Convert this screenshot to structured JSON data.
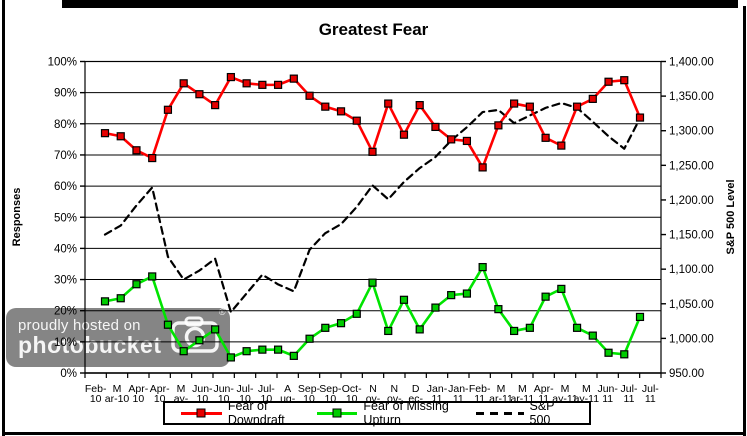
{
  "watermark": {
    "line1": "proudly hosted on",
    "line2": "photobucket",
    "registered": "®"
  },
  "chart_data": {
    "type": "line",
    "title": "Greatest Fear",
    "note": "Survey series sampled ~biweekly (35 points) across 27 printed axis labels; red and green series sum to ~100%.",
    "grid": "horizontal",
    "legend_position": "bottom",
    "y_left": {
      "label": "Responses",
      "min": 0,
      "max": 100,
      "ticks": [
        "0%",
        "10%",
        "20%",
        "30%",
        "40%",
        "50%",
        "60%",
        "70%",
        "80%",
        "90%",
        "100%"
      ]
    },
    "y_right": {
      "label": "S&P 500 Level",
      "min": 950,
      "max": 1400,
      "ticks": [
        "950.00",
        "1,000.00",
        "1,050.00",
        "1,100.00",
        "1,150.00",
        "1,200.00",
        "1,250.00",
        "1,300.00",
        "1,350.00",
        "1,400.00"
      ]
    },
    "x_tick_labels": [
      "Feb-10",
      "Mar-10",
      "Apr-10",
      "Apr-10",
      "May-10",
      "Jun-10",
      "Jun-10",
      "Jul-10",
      "Jul-10",
      "Aug-10",
      "Sep-10",
      "Sep-10",
      "Oct-10",
      "Nov-10",
      "Nov-10",
      "Dec-10",
      "Jan-11",
      "Jan-11",
      "Feb-11",
      "Mar-11",
      "Mar-11",
      "Apr-11",
      "May-11",
      "May-11",
      "Jun-11",
      "Jul-11",
      "Jul-11"
    ],
    "x_label_lines": [
      [
        "Feb-",
        "10"
      ],
      [
        "M",
        "ar-10"
      ],
      [
        "Apr-",
        "10"
      ],
      [
        "Apr-",
        "10"
      ],
      [
        "M",
        "ay-",
        "10"
      ],
      [
        "Jun-",
        "10"
      ],
      [
        "Jun-",
        "10"
      ],
      [
        "Jul-",
        "10"
      ],
      [
        "Jul-",
        "10"
      ],
      [
        "A",
        "ug-",
        "10"
      ],
      [
        "Sep-",
        "10"
      ],
      [
        "Sep-",
        "10"
      ],
      [
        "Oct-",
        "10"
      ],
      [
        "N",
        "ov-",
        "10"
      ],
      [
        "N",
        "ov-",
        "10"
      ],
      [
        "D",
        "ec-",
        "10"
      ],
      [
        "Jan-",
        "11"
      ],
      [
        "Jan-",
        "11"
      ],
      [
        "Feb-",
        "11"
      ],
      [
        "M",
        "ar-11"
      ],
      [
        "M",
        "ar-11"
      ],
      [
        "Apr-",
        "11"
      ],
      [
        "M",
        "ay-11"
      ],
      [
        "M",
        "ay-11"
      ],
      [
        "Jun-",
        "11"
      ],
      [
        "Jul-",
        "11"
      ],
      [
        "Jul-",
        "11"
      ]
    ],
    "series": [
      {
        "name": "S&P 500",
        "axis": "right",
        "style": "dashed",
        "color": "#000000",
        "values": [
          1150,
          1163,
          1192,
          1218,
          1118,
          1085,
          1098,
          1115,
          1038,
          1065,
          1092,
          1078,
          1068,
          1128,
          1152,
          1165,
          1190,
          1221,
          1201,
          1226,
          1246,
          1262,
          1286,
          1305,
          1327,
          1330,
          1311,
          1322,
          1333,
          1340,
          1333,
          1313,
          1292,
          1274,
          1318
        ]
      },
      {
        "name": "Fear of Missing Upturn",
        "axis": "left",
        "style": "solid",
        "color": "#00e400",
        "marker_color": "#00cc00",
        "marker": "square",
        "values": [
          23,
          24,
          28.5,
          31,
          15.5,
          7,
          10.5,
          14,
          5,
          7,
          7.5,
          7.5,
          5.5,
          11,
          14.5,
          16,
          19,
          29,
          13.5,
          23.5,
          14,
          21,
          25,
          25.5,
          34,
          20.5,
          13.5,
          14.5,
          24.5,
          27,
          14.5,
          12,
          6.5,
          6,
          18
        ]
      },
      {
        "name": "Fear of Downdraft",
        "axis": "left",
        "style": "solid",
        "color": "#ff0000",
        "marker_color": "#e60000",
        "marker": "square",
        "values": [
          77,
          76,
          71.5,
          69,
          84.5,
          93,
          89.5,
          86,
          95,
          93,
          92.5,
          92.5,
          94.5,
          89,
          85.5,
          84,
          81,
          71,
          86.5,
          76.5,
          86,
          79,
          75,
          74.5,
          66,
          79.5,
          86.5,
          85.5,
          75.5,
          73,
          85.5,
          88,
          93.5,
          94,
          82
        ]
      }
    ],
    "legend_order": [
      "Fear of Downdraft",
      "Fear of Missing Upturn",
      "S&P 500"
    ]
  }
}
